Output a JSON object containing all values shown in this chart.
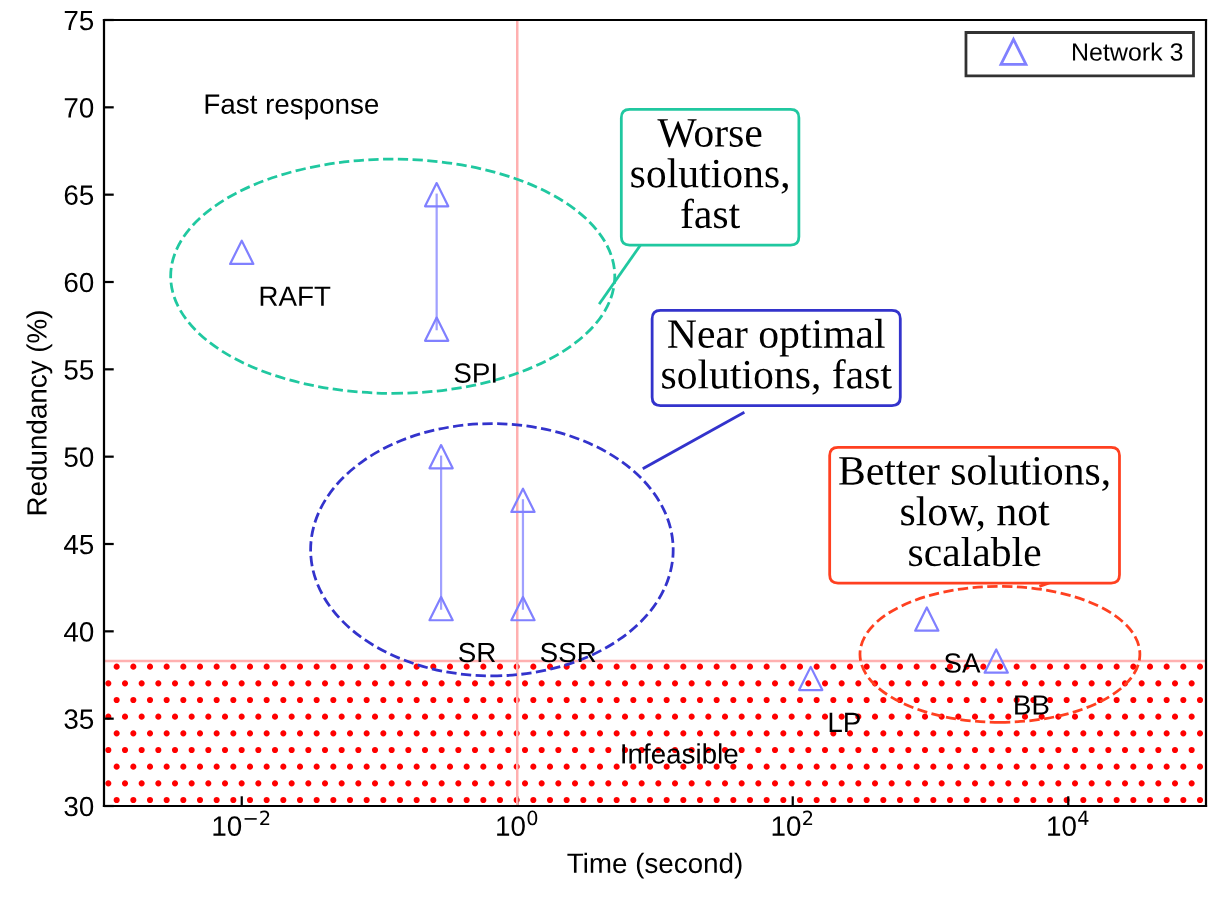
{
  "chart_data": {
    "type": "scatter",
    "xlabel": "Time (second)",
    "ylabel": "Redundancy (%)",
    "log": "x",
    "xlim": [
      0.001,
      100000
    ],
    "ylim": [
      30,
      75
    ],
    "xticks": [
      {
        "value": 0.01,
        "label": "10$^{−2}$"
      },
      {
        "value": 1,
        "label": "10$^{0}$"
      },
      {
        "value": 100,
        "label": "10$^{2}$"
      },
      {
        "value": 10000,
        "label": "10$^{4}$"
      }
    ],
    "yticks": [
      30,
      35,
      40,
      45,
      50,
      55,
      60,
      65,
      70,
      75
    ],
    "grid": false,
    "legend": "top right",
    "marker": "triangle",
    "series": [
      {
        "name": "Network 3",
        "color": "#8080ff",
        "x": [
          0.01,
          0.26,
          0.26,
          0.28,
          0.28,
          1.1,
          1.1,
          135,
          940,
          3000
        ],
        "values": [
          61.7,
          65,
          57.3,
          50,
          41.3,
          47.5,
          41.3,
          37.3,
          40.7,
          38.3
        ]
      },
      {
        "type": "line",
        "marker": "none",
        "color": "#a0a0ff",
        "x": [
          0.26,
          0.26
        ],
        "values": [
          57.3,
          65
        ]
      },
      {
        "type": "line",
        "marker": "none",
        "color": "#a0a0ff",
        "x": [
          0.28,
          0.28
        ],
        "values": [
          41.3,
          50
        ]
      },
      {
        "type": "line",
        "marker": "none",
        "color": "#a0a0ff",
        "x": [
          1.1,
          1.1
        ],
        "values": [
          41.3,
          47.5
        ]
      }
    ],
    "ref_lines": [
      {
        "axis": "x",
        "value": 1,
        "color": "#ffb0b0"
      },
      {
        "axis": "y",
        "value": 38.3,
        "color": "#ffb0b0"
      }
    ],
    "bands": [
      {
        "axis": "y",
        "from": 30,
        "to": 38.3,
        "label": "Infeasible",
        "color": "#ff0000"
      }
    ],
    "annotations": [
      {
        "text": "RAFT",
        "x": 0.01,
        "y": 61.7
      },
      {
        "text": "SPI",
        "x": 0.26,
        "y": 57.3
      },
      {
        "text": "SR",
        "x": 0.28,
        "y": 41.3
      },
      {
        "text": "SSR",
        "x": 1.1,
        "y": 41.3
      },
      {
        "text": "LP",
        "x": 135,
        "y": 37.3
      },
      {
        "text": "SA",
        "x": 940,
        "y": 40.7
      },
      {
        "text": "BB",
        "x": 3000,
        "y": 38.3
      },
      "Fast response",
      "Worse\nsolutions,\nfast",
      "Near optimal\nsolutions, fast",
      "Better solutions,\nslow, not\nscalable"
    ]
  }
}
